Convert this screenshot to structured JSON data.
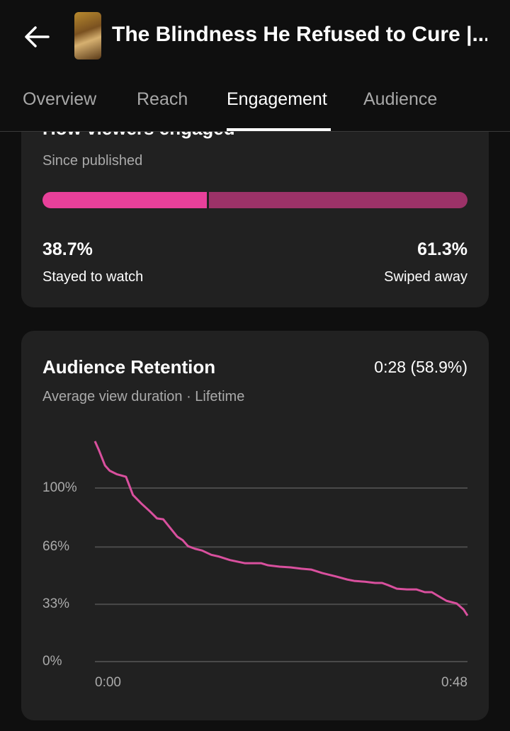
{
  "header": {
    "back_icon": "arrow-left-icon",
    "title": "The Blindness He Refused to Cure |..."
  },
  "tabs": [
    {
      "label": "Overview",
      "active": false
    },
    {
      "label": "Reach",
      "active": false
    },
    {
      "label": "Engagement",
      "active": true
    },
    {
      "label": "Audience",
      "active": false
    }
  ],
  "engaged_card": {
    "title": "How viewers engaged",
    "subtitle": "Since published",
    "stayed": {
      "value": "38.7%",
      "label": "Stayed to watch",
      "fraction": 0.387,
      "color": "#e8409a"
    },
    "swiped": {
      "value": "61.3%",
      "label": "Swiped away",
      "fraction": 0.613,
      "color": "#9c3268"
    }
  },
  "retention_card": {
    "title": "Audience Retention",
    "summary": "0:28 (58.9%)",
    "subtitle": "Average view duration · Lifetime"
  },
  "chart_data": {
    "type": "line",
    "title": "Audience Retention",
    "y_tick_labels": [
      "100%",
      "66%",
      "33%",
      "0%"
    ],
    "y_ticks": [
      100,
      66,
      33,
      0
    ],
    "x_tick_labels": [
      "0:00",
      "0:48"
    ],
    "xlim": [
      0,
      48
    ],
    "ylim": [
      0,
      127
    ],
    "grid": true,
    "line_color": "#d9509e",
    "series": [
      {
        "x": [
          0,
          0.5,
          1.3,
          1.9,
          2.8,
          4,
          4.9,
          6,
          7.1,
          8,
          8.8,
          9.7,
          10.6,
          11.3,
          12,
          12.9,
          13.8,
          15,
          16,
          17.4,
          19.3,
          21.4,
          22.3,
          23.8,
          25.2,
          26.6,
          27.9,
          29.3,
          31.1,
          32.5,
          33.4,
          34.8,
          36.1,
          37,
          37.8,
          38.9,
          40.2,
          41.4,
          42.5,
          43.4,
          44.3,
          45.3,
          46.6,
          47.5,
          48
        ],
        "y": [
          127,
          122,
          113,
          110,
          108,
          106.5,
          96,
          91,
          86.5,
          82.5,
          82,
          77,
          72,
          70,
          66.5,
          65,
          64,
          61.5,
          60.5,
          58.5,
          56.7,
          56.7,
          55.5,
          54.7,
          54.3,
          53.5,
          53,
          51,
          49,
          47.3,
          46.5,
          46,
          45.3,
          45.3,
          44,
          42,
          41.6,
          41.6,
          40,
          40,
          37.6,
          35,
          33.5,
          30,
          26.5
        ]
      }
    ]
  }
}
